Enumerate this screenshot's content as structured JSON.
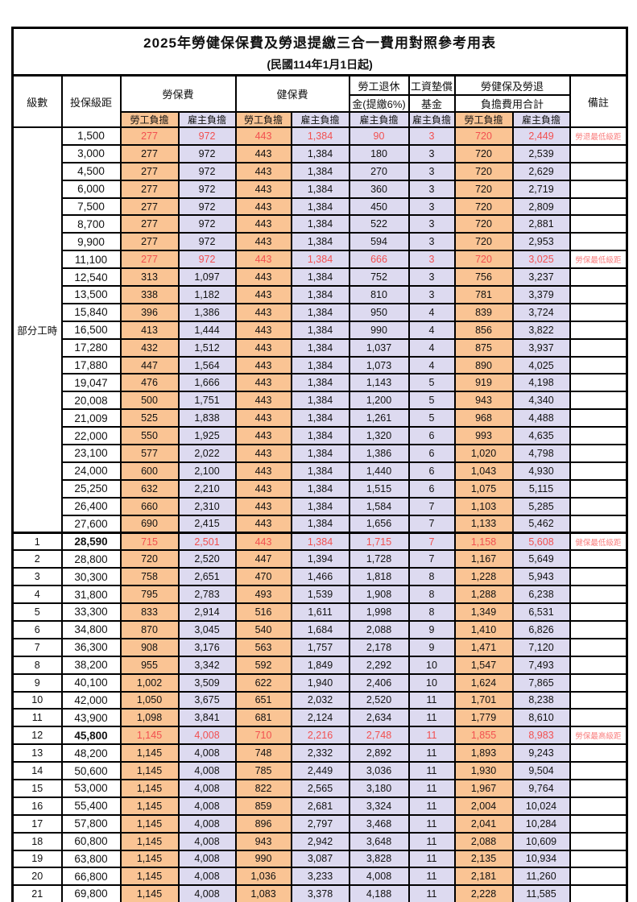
{
  "title": "2025年勞健保保費及勞退提繳三合一費用對照參考用表",
  "subtitle": "(民國114年1月1日起)",
  "colors": {
    "employee_bg": "#FAC494",
    "employer_bg": "#DDDAF0",
    "highlight_text": "#F25050",
    "remark_text": "#F97E7E",
    "border": "#000000"
  },
  "header": {
    "level_col": "級數",
    "bracket_col": "投保級距",
    "labor_ins": "勞保費",
    "health_ins": "健保費",
    "pension_line1": "勞工退休",
    "pension_line2": "金(提繳6%)",
    "wage_fund_line1": "工資墊償",
    "wage_fund_line2": "基金",
    "total_line1": "勞健保及勞退",
    "total_line2": "負擔費用合計",
    "remark_col": "備註",
    "employee": "勞工負擔",
    "employer": "雇主負擔"
  },
  "part_time": {
    "label": "部分工時",
    "row_span": 23
  },
  "fee_col_types": [
    "emp",
    "er",
    "emp",
    "er",
    "er",
    "er",
    "emp",
    "er"
  ],
  "rows": [
    {
      "level": null,
      "bracket": "1,500",
      "fees": [
        "277",
        "972",
        "443",
        "1,384",
        "90",
        "3",
        "720",
        "2,449"
      ],
      "remark": "勞退最低級距",
      "highlight": true,
      "bold_bracket": false,
      "section_start": false
    },
    {
      "level": null,
      "bracket": "3,000",
      "fees": [
        "277",
        "972",
        "443",
        "1,384",
        "180",
        "3",
        "720",
        "2,539"
      ],
      "remark": "",
      "highlight": false,
      "bold_bracket": false,
      "section_start": false
    },
    {
      "level": null,
      "bracket": "4,500",
      "fees": [
        "277",
        "972",
        "443",
        "1,384",
        "270",
        "3",
        "720",
        "2,629"
      ],
      "remark": "",
      "highlight": false,
      "bold_bracket": false,
      "section_start": false
    },
    {
      "level": null,
      "bracket": "6,000",
      "fees": [
        "277",
        "972",
        "443",
        "1,384",
        "360",
        "3",
        "720",
        "2,719"
      ],
      "remark": "",
      "highlight": false,
      "bold_bracket": false,
      "section_start": false
    },
    {
      "level": null,
      "bracket": "7,500",
      "fees": [
        "277",
        "972",
        "443",
        "1,384",
        "450",
        "3",
        "720",
        "2,809"
      ],
      "remark": "",
      "highlight": false,
      "bold_bracket": false,
      "section_start": false
    },
    {
      "level": null,
      "bracket": "8,700",
      "fees": [
        "277",
        "972",
        "443",
        "1,384",
        "522",
        "3",
        "720",
        "2,881"
      ],
      "remark": "",
      "highlight": false,
      "bold_bracket": false,
      "section_start": false
    },
    {
      "level": null,
      "bracket": "9,900",
      "fees": [
        "277",
        "972",
        "443",
        "1,384",
        "594",
        "3",
        "720",
        "2,953"
      ],
      "remark": "",
      "highlight": false,
      "bold_bracket": false,
      "section_start": false
    },
    {
      "level": null,
      "bracket": "11,100",
      "fees": [
        "277",
        "972",
        "443",
        "1,384",
        "666",
        "3",
        "720",
        "3,025"
      ],
      "remark": "勞保最低級距",
      "highlight": true,
      "bold_bracket": false,
      "section_start": false
    },
    {
      "level": null,
      "bracket": "12,540",
      "fees": [
        "313",
        "1,097",
        "443",
        "1,384",
        "752",
        "3",
        "756",
        "3,237"
      ],
      "remark": "",
      "highlight": false,
      "bold_bracket": false,
      "section_start": false
    },
    {
      "level": null,
      "bracket": "13,500",
      "fees": [
        "338",
        "1,182",
        "443",
        "1,384",
        "810",
        "3",
        "781",
        "3,379"
      ],
      "remark": "",
      "highlight": false,
      "bold_bracket": false,
      "section_start": false
    },
    {
      "level": null,
      "bracket": "15,840",
      "fees": [
        "396",
        "1,386",
        "443",
        "1,384",
        "950",
        "4",
        "839",
        "3,724"
      ],
      "remark": "",
      "highlight": false,
      "bold_bracket": false,
      "section_start": false
    },
    {
      "level": null,
      "bracket": "16,500",
      "fees": [
        "413",
        "1,444",
        "443",
        "1,384",
        "990",
        "4",
        "856",
        "3,822"
      ],
      "remark": "",
      "highlight": false,
      "bold_bracket": false,
      "section_start": false
    },
    {
      "level": null,
      "bracket": "17,280",
      "fees": [
        "432",
        "1,512",
        "443",
        "1,384",
        "1,037",
        "4",
        "875",
        "3,937"
      ],
      "remark": "",
      "highlight": false,
      "bold_bracket": false,
      "section_start": false
    },
    {
      "level": null,
      "bracket": "17,880",
      "fees": [
        "447",
        "1,564",
        "443",
        "1,384",
        "1,073",
        "4",
        "890",
        "4,025"
      ],
      "remark": "",
      "highlight": false,
      "bold_bracket": false,
      "section_start": false
    },
    {
      "level": null,
      "bracket": "19,047",
      "fees": [
        "476",
        "1,666",
        "443",
        "1,384",
        "1,143",
        "5",
        "919",
        "4,198"
      ],
      "remark": "",
      "highlight": false,
      "bold_bracket": false,
      "section_start": false
    },
    {
      "level": null,
      "bracket": "20,008",
      "fees": [
        "500",
        "1,751",
        "443",
        "1,384",
        "1,200",
        "5",
        "943",
        "4,340"
      ],
      "remark": "",
      "highlight": false,
      "bold_bracket": false,
      "section_start": false
    },
    {
      "level": null,
      "bracket": "21,009",
      "fees": [
        "525",
        "1,838",
        "443",
        "1,384",
        "1,261",
        "5",
        "968",
        "4,488"
      ],
      "remark": "",
      "highlight": false,
      "bold_bracket": false,
      "section_start": false
    },
    {
      "level": null,
      "bracket": "22,000",
      "fees": [
        "550",
        "1,925",
        "443",
        "1,384",
        "1,320",
        "6",
        "993",
        "4,635"
      ],
      "remark": "",
      "highlight": false,
      "bold_bracket": false,
      "section_start": false
    },
    {
      "level": null,
      "bracket": "23,100",
      "fees": [
        "577",
        "2,022",
        "443",
        "1,384",
        "1,386",
        "6",
        "1,020",
        "4,798"
      ],
      "remark": "",
      "highlight": false,
      "bold_bracket": false,
      "section_start": false
    },
    {
      "level": null,
      "bracket": "24,000",
      "fees": [
        "600",
        "2,100",
        "443",
        "1,384",
        "1,440",
        "6",
        "1,043",
        "4,930"
      ],
      "remark": "",
      "highlight": false,
      "bold_bracket": false,
      "section_start": false
    },
    {
      "level": null,
      "bracket": "25,250",
      "fees": [
        "632",
        "2,210",
        "443",
        "1,384",
        "1,515",
        "6",
        "1,075",
        "5,115"
      ],
      "remark": "",
      "highlight": false,
      "bold_bracket": false,
      "section_start": false
    },
    {
      "level": null,
      "bracket": "26,400",
      "fees": [
        "660",
        "2,310",
        "443",
        "1,384",
        "1,584",
        "7",
        "1,103",
        "5,285"
      ],
      "remark": "",
      "highlight": false,
      "bold_bracket": false,
      "section_start": false
    },
    {
      "level": null,
      "bracket": "27,600",
      "fees": [
        "690",
        "2,415",
        "443",
        "1,384",
        "1,656",
        "7",
        "1,133",
        "5,462"
      ],
      "remark": "",
      "highlight": false,
      "bold_bracket": false,
      "section_start": false
    },
    {
      "level": "1",
      "bracket": "28,590",
      "fees": [
        "715",
        "2,501",
        "443",
        "1,384",
        "1,715",
        "7",
        "1,158",
        "5,608"
      ],
      "remark": "健保最低級距",
      "highlight": true,
      "bold_bracket": true,
      "section_start": true
    },
    {
      "level": "2",
      "bracket": "28,800",
      "fees": [
        "720",
        "2,520",
        "447",
        "1,394",
        "1,728",
        "7",
        "1,167",
        "5,649"
      ],
      "remark": "",
      "highlight": false,
      "bold_bracket": false,
      "section_start": false
    },
    {
      "level": "3",
      "bracket": "30,300",
      "fees": [
        "758",
        "2,651",
        "470",
        "1,466",
        "1,818",
        "8",
        "1,228",
        "5,943"
      ],
      "remark": "",
      "highlight": false,
      "bold_bracket": false,
      "section_start": false
    },
    {
      "level": "4",
      "bracket": "31,800",
      "fees": [
        "795",
        "2,783",
        "493",
        "1,539",
        "1,908",
        "8",
        "1,288",
        "6,238"
      ],
      "remark": "",
      "highlight": false,
      "bold_bracket": false,
      "section_start": false
    },
    {
      "level": "5",
      "bracket": "33,300",
      "fees": [
        "833",
        "2,914",
        "516",
        "1,611",
        "1,998",
        "8",
        "1,349",
        "6,531"
      ],
      "remark": "",
      "highlight": false,
      "bold_bracket": false,
      "section_start": false
    },
    {
      "level": "6",
      "bracket": "34,800",
      "fees": [
        "870",
        "3,045",
        "540",
        "1,684",
        "2,088",
        "9",
        "1,410",
        "6,826"
      ],
      "remark": "",
      "highlight": false,
      "bold_bracket": false,
      "section_start": false
    },
    {
      "level": "7",
      "bracket": "36,300",
      "fees": [
        "908",
        "3,176",
        "563",
        "1,757",
        "2,178",
        "9",
        "1,471",
        "7,120"
      ],
      "remark": "",
      "highlight": false,
      "bold_bracket": false,
      "section_start": false
    },
    {
      "level": "8",
      "bracket": "38,200",
      "fees": [
        "955",
        "3,342",
        "592",
        "1,849",
        "2,292",
        "10",
        "1,547",
        "7,493"
      ],
      "remark": "",
      "highlight": false,
      "bold_bracket": false,
      "section_start": false
    },
    {
      "level": "9",
      "bracket": "40,100",
      "fees": [
        "1,002",
        "3,509",
        "622",
        "1,940",
        "2,406",
        "10",
        "1,624",
        "7,865"
      ],
      "remark": "",
      "highlight": false,
      "bold_bracket": false,
      "section_start": false
    },
    {
      "level": "10",
      "bracket": "42,000",
      "fees": [
        "1,050",
        "3,675",
        "651",
        "2,032",
        "2,520",
        "11",
        "1,701",
        "8,238"
      ],
      "remark": "",
      "highlight": false,
      "bold_bracket": false,
      "section_start": false
    },
    {
      "level": "11",
      "bracket": "43,900",
      "fees": [
        "1,098",
        "3,841",
        "681",
        "2,124",
        "2,634",
        "11",
        "1,779",
        "8,610"
      ],
      "remark": "",
      "highlight": false,
      "bold_bracket": false,
      "section_start": false
    },
    {
      "level": "12",
      "bracket": "45,800",
      "fees": [
        "1,145",
        "4,008",
        "710",
        "2,216",
        "2,748",
        "11",
        "1,855",
        "8,983"
      ],
      "remark": "勞保最高級距",
      "highlight": true,
      "bold_bracket": true,
      "section_start": false
    },
    {
      "level": "13",
      "bracket": "48,200",
      "fees": [
        "1,145",
        "4,008",
        "748",
        "2,332",
        "2,892",
        "11",
        "1,893",
        "9,243"
      ],
      "remark": "",
      "highlight": false,
      "bold_bracket": false,
      "section_start": false
    },
    {
      "level": "14",
      "bracket": "50,600",
      "fees": [
        "1,145",
        "4,008",
        "785",
        "2,449",
        "3,036",
        "11",
        "1,930",
        "9,504"
      ],
      "remark": "",
      "highlight": false,
      "bold_bracket": false,
      "section_start": false
    },
    {
      "level": "15",
      "bracket": "53,000",
      "fees": [
        "1,145",
        "4,008",
        "822",
        "2,565",
        "3,180",
        "11",
        "1,967",
        "9,764"
      ],
      "remark": "",
      "highlight": false,
      "bold_bracket": false,
      "section_start": false
    },
    {
      "level": "16",
      "bracket": "55,400",
      "fees": [
        "1,145",
        "4,008",
        "859",
        "2,681",
        "3,324",
        "11",
        "2,004",
        "10,024"
      ],
      "remark": "",
      "highlight": false,
      "bold_bracket": false,
      "section_start": false
    },
    {
      "level": "17",
      "bracket": "57,800",
      "fees": [
        "1,145",
        "4,008",
        "896",
        "2,797",
        "3,468",
        "11",
        "2,041",
        "10,284"
      ],
      "remark": "",
      "highlight": false,
      "bold_bracket": false,
      "section_start": false
    },
    {
      "level": "18",
      "bracket": "60,800",
      "fees": [
        "1,145",
        "4,008",
        "943",
        "2,942",
        "3,648",
        "11",
        "2,088",
        "10,609"
      ],
      "remark": "",
      "highlight": false,
      "bold_bracket": false,
      "section_start": false
    },
    {
      "level": "19",
      "bracket": "63,800",
      "fees": [
        "1,145",
        "4,008",
        "990",
        "3,087",
        "3,828",
        "11",
        "2,135",
        "10,934"
      ],
      "remark": "",
      "highlight": false,
      "bold_bracket": false,
      "section_start": false
    },
    {
      "level": "20",
      "bracket": "66,800",
      "fees": [
        "1,145",
        "4,008",
        "1,036",
        "3,233",
        "4,008",
        "11",
        "2,181",
        "11,260"
      ],
      "remark": "",
      "highlight": false,
      "bold_bracket": false,
      "section_start": false
    },
    {
      "level": "21",
      "bracket": "69,800",
      "fees": [
        "1,145",
        "4,008",
        "1,083",
        "3,378",
        "4,188",
        "11",
        "2,228",
        "11,585"
      ],
      "remark": "",
      "highlight": false,
      "bold_bracket": false,
      "section_start": false
    }
  ]
}
